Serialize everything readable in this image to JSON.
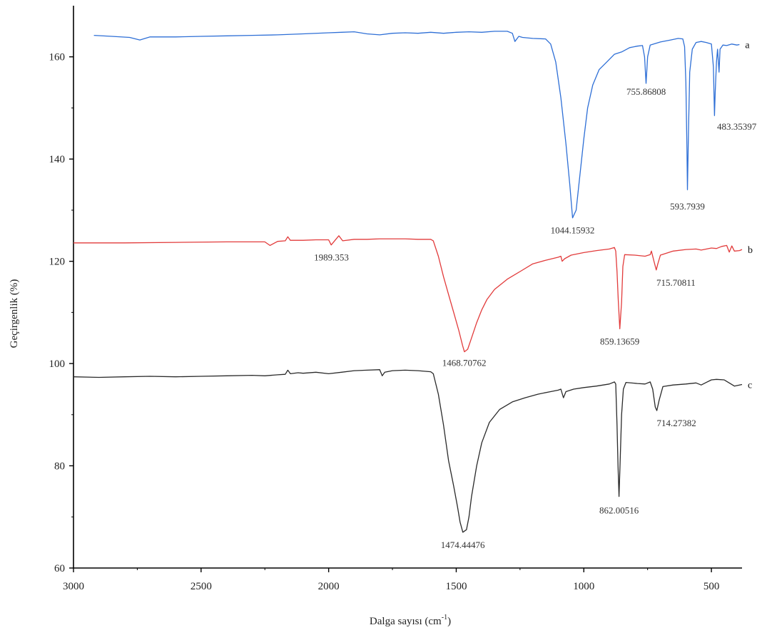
{
  "chart_data": {
    "type": "line",
    "xlabel_main": "Dalga sayısı (cm",
    "xlabel_sup": "-1",
    "xlabel_close": ")",
    "ylabel": "Geçirgenlik (%)",
    "xlim": [
      3000,
      350
    ],
    "ylim": [
      60,
      170
    ],
    "xticks": [
      3000,
      2500,
      2000,
      1500,
      1000,
      500
    ],
    "yticks": [
      60,
      80,
      100,
      120,
      140,
      160
    ],
    "grid": false,
    "series": [
      {
        "name": "a",
        "color": "#2e6fd6",
        "points": [
          [
            2920,
            164.2
          ],
          [
            2850,
            164.0
          ],
          [
            2780,
            163.8
          ],
          [
            2740,
            163.3
          ],
          [
            2700,
            163.9
          ],
          [
            2600,
            163.9
          ],
          [
            2500,
            164.0
          ],
          [
            2400,
            164.1
          ],
          [
            2300,
            164.2
          ],
          [
            2200,
            164.3
          ],
          [
            2100,
            164.5
          ],
          [
            2000,
            164.7
          ],
          [
            1950,
            164.8
          ],
          [
            1900,
            164.9
          ],
          [
            1850,
            164.5
          ],
          [
            1800,
            164.3
          ],
          [
            1750,
            164.6
          ],
          [
            1700,
            164.7
          ],
          [
            1650,
            164.6
          ],
          [
            1600,
            164.8
          ],
          [
            1550,
            164.6
          ],
          [
            1500,
            164.8
          ],
          [
            1450,
            164.9
          ],
          [
            1400,
            164.8
          ],
          [
            1350,
            165.0
          ],
          [
            1300,
            165.0
          ],
          [
            1280,
            164.6
          ],
          [
            1270,
            163.0
          ],
          [
            1255,
            164.0
          ],
          [
            1240,
            163.8
          ],
          [
            1200,
            163.6
          ],
          [
            1150,
            163.5
          ],
          [
            1130,
            162.5
          ],
          [
            1110,
            159.0
          ],
          [
            1090,
            152.0
          ],
          [
            1070,
            143.0
          ],
          [
            1055,
            135.0
          ],
          [
            1044,
            128.5
          ],
          [
            1030,
            130.0
          ],
          [
            1015,
            137.0
          ],
          [
            1000,
            144.0
          ],
          [
            985,
            150.0
          ],
          [
            965,
            154.5
          ],
          [
            940,
            157.5
          ],
          [
            910,
            159.0
          ],
          [
            880,
            160.5
          ],
          [
            850,
            161.0
          ],
          [
            820,
            161.8
          ],
          [
            790,
            162.1
          ],
          [
            770,
            162.2
          ],
          [
            762,
            160.0
          ],
          [
            756,
            154.8
          ],
          [
            750,
            160.0
          ],
          [
            740,
            162.3
          ],
          [
            700,
            162.9
          ],
          [
            660,
            163.3
          ],
          [
            630,
            163.6
          ],
          [
            612,
            163.5
          ],
          [
            605,
            162.0
          ],
          [
            600,
            155.0
          ],
          [
            596,
            142.0
          ],
          [
            594,
            134.0
          ],
          [
            590,
            145.0
          ],
          [
            585,
            157.0
          ],
          [
            575,
            161.5
          ],
          [
            560,
            162.8
          ],
          [
            540,
            163.0
          ],
          [
            520,
            162.8
          ],
          [
            500,
            162.5
          ],
          [
            492,
            158.0
          ],
          [
            488,
            148.5
          ],
          [
            485,
            153.0
          ],
          [
            480,
            159.0
          ],
          [
            476,
            161.5
          ],
          [
            470,
            157.0
          ],
          [
            466,
            161.5
          ],
          [
            455,
            162.3
          ],
          [
            440,
            162.2
          ],
          [
            420,
            162.5
          ],
          [
            400,
            162.3
          ],
          [
            390,
            162.4
          ]
        ],
        "annotations": [
          {
            "x": 1044.15932,
            "y": 128.5,
            "label": "1044.15932"
          },
          {
            "x": 755.86808,
            "y": 154.8,
            "label": "755.86808"
          },
          {
            "x": 593.7939,
            "y": 134.0,
            "label": "593.7939"
          },
          {
            "x": 483.35397,
            "y": 148.5,
            "label": "483.35397"
          }
        ]
      },
      {
        "name": "b",
        "color": "#e23b3b",
        "points": [
          [
            3000,
            123.6
          ],
          [
            2800,
            123.6
          ],
          [
            2600,
            123.7
          ],
          [
            2400,
            123.8
          ],
          [
            2250,
            123.8
          ],
          [
            2230,
            123.1
          ],
          [
            2200,
            123.9
          ],
          [
            2170,
            124.0
          ],
          [
            2160,
            124.8
          ],
          [
            2150,
            124.1
          ],
          [
            2100,
            124.1
          ],
          [
            2050,
            124.2
          ],
          [
            2000,
            124.2
          ],
          [
            1990,
            123.2
          ],
          [
            1975,
            124.1
          ],
          [
            1960,
            125.0
          ],
          [
            1945,
            124.0
          ],
          [
            1900,
            124.3
          ],
          [
            1850,
            124.3
          ],
          [
            1800,
            124.4
          ],
          [
            1750,
            124.4
          ],
          [
            1700,
            124.4
          ],
          [
            1650,
            124.3
          ],
          [
            1600,
            124.3
          ],
          [
            1590,
            124.0
          ],
          [
            1570,
            121.0
          ],
          [
            1550,
            117.0
          ],
          [
            1530,
            113.5
          ],
          [
            1510,
            110.0
          ],
          [
            1490,
            106.5
          ],
          [
            1475,
            103.5
          ],
          [
            1468,
            102.3
          ],
          [
            1455,
            102.8
          ],
          [
            1440,
            105.0
          ],
          [
            1420,
            108.0
          ],
          [
            1400,
            110.5
          ],
          [
            1380,
            112.5
          ],
          [
            1350,
            114.5
          ],
          [
            1300,
            116.5
          ],
          [
            1250,
            118.0
          ],
          [
            1200,
            119.5
          ],
          [
            1150,
            120.2
          ],
          [
            1100,
            120.8
          ],
          [
            1090,
            121.0
          ],
          [
            1085,
            120.0
          ],
          [
            1075,
            120.5
          ],
          [
            1050,
            121.2
          ],
          [
            1000,
            121.7
          ],
          [
            950,
            122.1
          ],
          [
            900,
            122.4
          ],
          [
            880,
            122.7
          ],
          [
            875,
            122.0
          ],
          [
            870,
            118.0
          ],
          [
            865,
            112.5
          ],
          [
            859,
            106.8
          ],
          [
            852,
            112.0
          ],
          [
            847,
            119.0
          ],
          [
            840,
            121.3
          ],
          [
            800,
            121.2
          ],
          [
            760,
            121.0
          ],
          [
            740,
            121.3
          ],
          [
            735,
            122.0
          ],
          [
            725,
            120.0
          ],
          [
            716,
            118.3
          ],
          [
            710,
            119.5
          ],
          [
            700,
            121.2
          ],
          [
            650,
            122.0
          ],
          [
            600,
            122.3
          ],
          [
            560,
            122.4
          ],
          [
            540,
            122.2
          ],
          [
            500,
            122.6
          ],
          [
            480,
            122.5
          ],
          [
            460,
            122.9
          ],
          [
            440,
            123.1
          ],
          [
            430,
            121.8
          ],
          [
            420,
            123.0
          ],
          [
            410,
            122.0
          ],
          [
            390,
            122.1
          ],
          [
            380,
            122.3
          ]
        ],
        "annotations": [
          {
            "x": 1989.353,
            "y": 123.2,
            "label": "1989.353"
          },
          {
            "x": 1468.70762,
            "y": 102.3,
            "label": "1468.70762"
          },
          {
            "x": 859.13659,
            "y": 106.8,
            "label": "859.13659"
          },
          {
            "x": 715.70811,
            "y": 118.3,
            "label": "715.70811"
          }
        ]
      },
      {
        "name": "c",
        "color": "#2a2a2a",
        "points": [
          [
            3000,
            97.4
          ],
          [
            2900,
            97.3
          ],
          [
            2800,
            97.4
          ],
          [
            2700,
            97.5
          ],
          [
            2600,
            97.4
          ],
          [
            2500,
            97.5
          ],
          [
            2400,
            97.6
          ],
          [
            2300,
            97.7
          ],
          [
            2250,
            97.6
          ],
          [
            2200,
            97.8
          ],
          [
            2170,
            97.9
          ],
          [
            2160,
            98.7
          ],
          [
            2150,
            98.0
          ],
          [
            2120,
            98.2
          ],
          [
            2100,
            98.1
          ],
          [
            2050,
            98.3
          ],
          [
            2000,
            98.0
          ],
          [
            1950,
            98.3
          ],
          [
            1900,
            98.6
          ],
          [
            1850,
            98.7
          ],
          [
            1800,
            98.8
          ],
          [
            1790,
            97.6
          ],
          [
            1780,
            98.3
          ],
          [
            1750,
            98.6
          ],
          [
            1700,
            98.7
          ],
          [
            1650,
            98.6
          ],
          [
            1600,
            98.4
          ],
          [
            1590,
            98.0
          ],
          [
            1570,
            94.0
          ],
          [
            1550,
            88.0
          ],
          [
            1530,
            81.0
          ],
          [
            1510,
            76.0
          ],
          [
            1495,
            72.0
          ],
          [
            1485,
            69.0
          ],
          [
            1474,
            67.0
          ],
          [
            1460,
            67.5
          ],
          [
            1450,
            70.0
          ],
          [
            1440,
            74.0
          ],
          [
            1420,
            80.0
          ],
          [
            1400,
            84.5
          ],
          [
            1370,
            88.5
          ],
          [
            1330,
            91.0
          ],
          [
            1280,
            92.5
          ],
          [
            1230,
            93.3
          ],
          [
            1180,
            94.0
          ],
          [
            1130,
            94.5
          ],
          [
            1100,
            94.8
          ],
          [
            1090,
            95.0
          ],
          [
            1080,
            93.3
          ],
          [
            1070,
            94.5
          ],
          [
            1040,
            95.0
          ],
          [
            1000,
            95.3
          ],
          [
            950,
            95.6
          ],
          [
            900,
            96.0
          ],
          [
            880,
            96.4
          ],
          [
            875,
            96.0
          ],
          [
            870,
            88.0
          ],
          [
            866,
            80.0
          ],
          [
            862,
            74.0
          ],
          [
            858,
            80.5
          ],
          [
            852,
            90.0
          ],
          [
            845,
            95.0
          ],
          [
            835,
            96.3
          ],
          [
            790,
            96.1
          ],
          [
            760,
            96.0
          ],
          [
            740,
            96.4
          ],
          [
            730,
            95.0
          ],
          [
            720,
            91.5
          ],
          [
            714,
            90.8
          ],
          [
            705,
            92.8
          ],
          [
            690,
            95.5
          ],
          [
            650,
            95.8
          ],
          [
            600,
            96.0
          ],
          [
            560,
            96.2
          ],
          [
            540,
            95.8
          ],
          [
            520,
            96.3
          ],
          [
            500,
            96.8
          ],
          [
            480,
            96.9
          ],
          [
            450,
            96.8
          ],
          [
            430,
            96.2
          ],
          [
            410,
            95.6
          ],
          [
            390,
            95.8
          ],
          [
            380,
            95.9
          ]
        ],
        "annotations": [
          {
            "x": 1474.44476,
            "y": 67.0,
            "label": "1474.44476"
          },
          {
            "x": 862.00516,
            "y": 74.0,
            "label": "862.00516"
          },
          {
            "x": 714.27382,
            "y": 90.8,
            "label": "714.27382"
          }
        ]
      }
    ]
  }
}
